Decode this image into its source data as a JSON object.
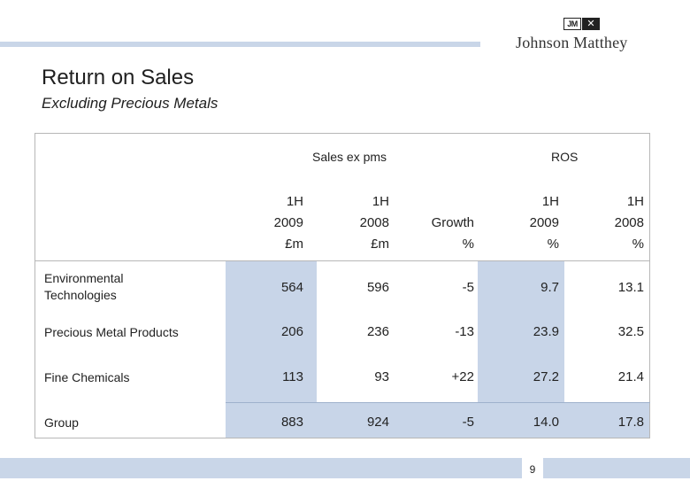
{
  "header": {
    "logo_mark_text": "JM",
    "logo_mark_glyph": "✕",
    "logo_wordmark": "Johnson Matthey"
  },
  "title": "Return on Sales",
  "subtitle": "Excluding Precious Metals",
  "table": {
    "group_headers": [
      "Sales ex pms",
      "ROS"
    ],
    "columns": [
      {
        "line1": "1H",
        "line2": "2009",
        "line3": "£m"
      },
      {
        "line1": "1H",
        "line2": "2008",
        "line3": "£m"
      },
      {
        "line1": "",
        "line2": "Growth",
        "line3": "%"
      },
      {
        "line1": "1H",
        "line2": "2009",
        "line3": "%"
      },
      {
        "line1": "1H",
        "line2": "2008",
        "line3": "%"
      }
    ],
    "rows": [
      {
        "label_line1": "Environmental",
        "label_line2": "Technologies",
        "values": [
          "564",
          "596",
          "-5",
          "9.7",
          "13.1"
        ]
      },
      {
        "label_line1": "Precious Metal Products",
        "label_line2": "",
        "values": [
          "206",
          "236",
          "-13",
          "23.9",
          "32.5"
        ]
      },
      {
        "label_line1": "Fine Chemicals",
        "label_line2": "",
        "values": [
          "113",
          "93",
          "+22",
          "27.2",
          "21.4"
        ]
      },
      {
        "label_line1": "Group",
        "label_line2": "",
        "values": [
          "883",
          "924",
          "-5",
          "14.0",
          "17.8"
        ]
      }
    ]
  },
  "footer": {
    "page_number": "9"
  },
  "colors": {
    "accent_bar": "#c9d6e8",
    "shaded_cells": "#c8d5e8"
  }
}
